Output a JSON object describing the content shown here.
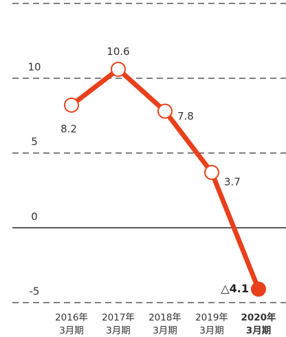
{
  "chart_data": {
    "type": "line",
    "categories": [
      [
        "2016年",
        "3月期"
      ],
      [
        "2017年",
        "3月期"
      ],
      [
        "2018年",
        "3月期"
      ],
      [
        "2019年",
        "3月期"
      ],
      [
        "2020年",
        "3月期"
      ]
    ],
    "series": [
      {
        "color": "#e8401c",
        "values": [
          8.2,
          10.6,
          7.8,
          3.7,
          -4.1
        ],
        "value_labels": [
          "8.2",
          "10.6",
          "7.8",
          "3.7",
          "△4.1"
        ]
      }
    ],
    "ylim": [
      -5,
      15
    ],
    "yticks": [
      -5,
      0,
      5,
      10
    ],
    "grid": true,
    "highlight_index": 4
  }
}
